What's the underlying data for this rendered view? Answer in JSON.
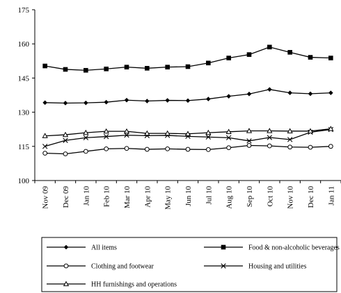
{
  "chart_data": {
    "type": "line",
    "categories": [
      "Nov 09",
      "Dec 09",
      "Jan 10",
      "Feb 10",
      "Mar 10",
      "Apr 10",
      "May 10",
      "Jun 10",
      "Jul 10",
      "Aug 10",
      "Sep 10",
      "Oct 10",
      "Nov 10",
      "Dec 10",
      "Jan 11"
    ],
    "ylim": [
      100,
      175
    ],
    "yticks": [
      100,
      115,
      130,
      145,
      160,
      175
    ],
    "grid": false,
    "legend_position": "bottom",
    "series": [
      {
        "name": "All items",
        "marker": "diamond",
        "values": [
          134.2,
          134.0,
          134.1,
          134.4,
          135.3,
          134.9,
          135.2,
          135.1,
          135.8,
          137.0,
          138.0,
          140.0,
          138.5,
          138.1,
          138.5
        ]
      },
      {
        "name": "Food & non-alcoholic beverages",
        "marker": "square",
        "values": [
          150.3,
          148.8,
          148.4,
          149.0,
          149.8,
          149.3,
          149.8,
          150.0,
          151.6,
          153.8,
          155.3,
          158.6,
          156.3,
          154.1,
          153.8
        ]
      },
      {
        "name": "Clothing and footwear",
        "marker": "circle",
        "values": [
          112.0,
          111.7,
          112.8,
          113.9,
          114.1,
          113.7,
          113.9,
          113.7,
          113.6,
          114.4,
          115.4,
          115.2,
          114.7,
          114.6,
          115.0
        ]
      },
      {
        "name": "Housing and utilities",
        "marker": "x",
        "values": [
          115.0,
          117.6,
          118.8,
          119.3,
          119.9,
          119.7,
          119.8,
          119.4,
          119.1,
          118.8,
          117.4,
          118.9,
          118.0,
          121.2,
          122.4
        ]
      },
      {
        "name": "HH furnishings and operations",
        "marker": "triangle",
        "values": [
          119.6,
          120.1,
          121.0,
          121.6,
          121.6,
          120.7,
          120.7,
          120.5,
          121.0,
          121.4,
          121.8,
          121.8,
          121.7,
          121.7,
          122.7
        ]
      }
    ]
  }
}
